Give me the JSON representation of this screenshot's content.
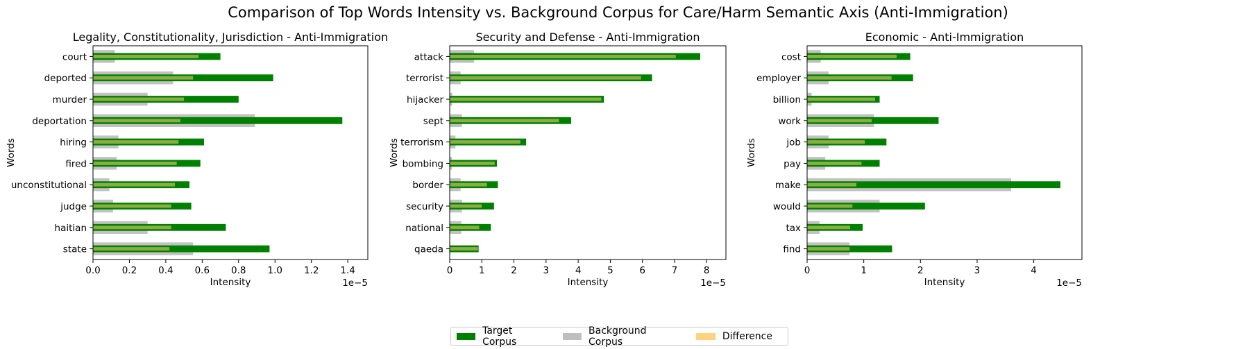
{
  "suptitle": "Comparison of Top Words Intensity vs. Background Corpus for Care/Harm Semantic Axis (Anti-Immigration)",
  "legend": {
    "position": "lower center",
    "items": [
      {
        "label": "Target Corpus",
        "color": "#008000"
      },
      {
        "label": "Background Corpus",
        "color": "#bfbfbf"
      },
      {
        "label": "Difference",
        "color": "#ffd27f"
      }
    ]
  },
  "colors": {
    "target": "#008000",
    "background": "#bfbfbf",
    "difference": "#ffd27f"
  },
  "chart_data": [
    {
      "type": "bar",
      "orientation": "horizontal",
      "title": "Legality, Constitutionality, Jurisdiction - Anti-Immigration",
      "xlabel": "Intensity",
      "ylabel": "Words",
      "offset_text": "1e−5",
      "xlim": [
        0,
        1.51
      ],
      "xticks": [
        0.0,
        0.2,
        0.4,
        0.6,
        0.8,
        1.0,
        1.2,
        1.4
      ],
      "xtick_labels": [
        "0.0",
        "0.2",
        "0.4",
        "0.6",
        "0.8",
        "1.0",
        "1.2",
        "1.4"
      ],
      "categories": [
        "court",
        "deported",
        "murder",
        "deportation",
        "hiring",
        "fired",
        "unconstitutional",
        "judge",
        "haitian",
        "state"
      ],
      "series": [
        {
          "name": "Target Corpus",
          "values": [
            0.7,
            0.99,
            0.8,
            1.37,
            0.61,
            0.59,
            0.53,
            0.54,
            0.73,
            0.97
          ]
        },
        {
          "name": "Background Corpus",
          "values": [
            0.12,
            0.44,
            0.3,
            0.89,
            0.14,
            0.13,
            0.09,
            0.11,
            0.3,
            0.55
          ]
        },
        {
          "name": "Difference",
          "values": [
            0.58,
            0.55,
            0.5,
            0.48,
            0.47,
            0.46,
            0.45,
            0.43,
            0.43,
            0.42
          ]
        }
      ]
    },
    {
      "type": "bar",
      "orientation": "horizontal",
      "title": "Security and Defense - Anti-Immigration",
      "xlabel": "Intensity",
      "ylabel": "Words",
      "offset_text": "1e−5",
      "xlim": [
        0,
        8.6
      ],
      "xticks": [
        0,
        1,
        2,
        3,
        4,
        5,
        6,
        7,
        8
      ],
      "xtick_labels": [
        "0",
        "1",
        "2",
        "3",
        "4",
        "5",
        "6",
        "7",
        "8"
      ],
      "categories": [
        "attack",
        "terrorist",
        "hijacker",
        "sept",
        "terrorism",
        "bombing",
        "border",
        "security",
        "national",
        "qaeda"
      ],
      "series": [
        {
          "name": "Target Corpus",
          "values": [
            7.8,
            6.3,
            4.8,
            3.78,
            2.38,
            1.47,
            1.5,
            1.38,
            1.28,
            0.9
          ]
        },
        {
          "name": "Background Corpus",
          "values": [
            0.76,
            0.34,
            0.08,
            0.38,
            0.18,
            0.07,
            0.34,
            0.38,
            0.36,
            0.02
          ]
        },
        {
          "name": "Difference",
          "values": [
            7.04,
            5.96,
            4.72,
            3.4,
            2.2,
            1.4,
            1.16,
            1.0,
            0.92,
            0.88
          ]
        }
      ]
    },
    {
      "type": "bar",
      "orientation": "horizontal",
      "title": "Economic - Anti-Immigration",
      "xlabel": "Intensity",
      "ylabel": "Words",
      "offset_text": "1e−5",
      "xlim": [
        0,
        4.85
      ],
      "xticks": [
        0,
        1,
        2,
        3,
        4
      ],
      "xtick_labels": [
        "0",
        "1",
        "2",
        "3",
        "4"
      ],
      "categories": [
        "cost",
        "employer",
        "billion",
        "work",
        "job",
        "pay",
        "make",
        "would",
        "tax",
        "find"
      ],
      "series": [
        {
          "name": "Target Corpus",
          "values": [
            1.82,
            1.87,
            1.28,
            2.32,
            1.4,
            1.28,
            4.47,
            2.08,
            0.98,
            1.5
          ]
        },
        {
          "name": "Background Corpus",
          "values": [
            0.24,
            0.38,
            0.08,
            1.18,
            0.38,
            0.32,
            3.6,
            1.28,
            0.22,
            0.75
          ]
        },
        {
          "name": "Difference",
          "values": [
            1.58,
            1.49,
            1.2,
            1.14,
            1.02,
            0.96,
            0.87,
            0.8,
            0.76,
            0.75
          ]
        }
      ]
    }
  ]
}
